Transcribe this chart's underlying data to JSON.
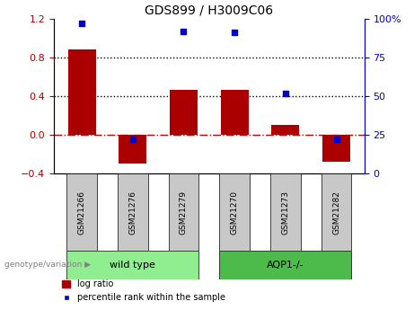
{
  "title": "GDS899 / H3009C06",
  "samples": [
    "GSM21266",
    "GSM21276",
    "GSM21279",
    "GSM21270",
    "GSM21273",
    "GSM21282"
  ],
  "log_ratio": [
    0.88,
    -0.3,
    0.46,
    0.46,
    0.1,
    -0.28
  ],
  "percentile_rank": [
    97,
    22,
    92,
    91,
    52,
    22
  ],
  "bar_color": "#AA0000",
  "dot_color": "#0000CC",
  "ylim_left": [
    -0.4,
    1.2
  ],
  "ylim_right": [
    0,
    100
  ],
  "right_ticks": [
    0,
    25,
    50,
    75,
    100
  ],
  "right_tick_labels": [
    "0",
    "25",
    "50",
    "75",
    "100%"
  ],
  "left_ticks": [
    -0.4,
    0.0,
    0.4,
    0.8,
    1.2
  ],
  "hline_values": [
    0.8,
    0.4
  ],
  "zero_line_color": "#CC0000",
  "dotted_line_color": "#000000",
  "group1_label": "wild type",
  "group2_label": "AQP1-/-",
  "group1_indices": [
    0,
    1,
    2
  ],
  "group2_indices": [
    3,
    4,
    5
  ],
  "group1_color": "#90EE90",
  "group2_color": "#4CBB4C",
  "genotype_label": "genotype/variation",
  "legend_bar_label": "log ratio",
  "legend_dot_label": "percentile rank within the sample",
  "bar_width": 0.55,
  "xticklabel_bg": "#C8C8C8",
  "title_fontsize": 10,
  "tick_fontsize": 8,
  "sample_fontsize": 6.5
}
